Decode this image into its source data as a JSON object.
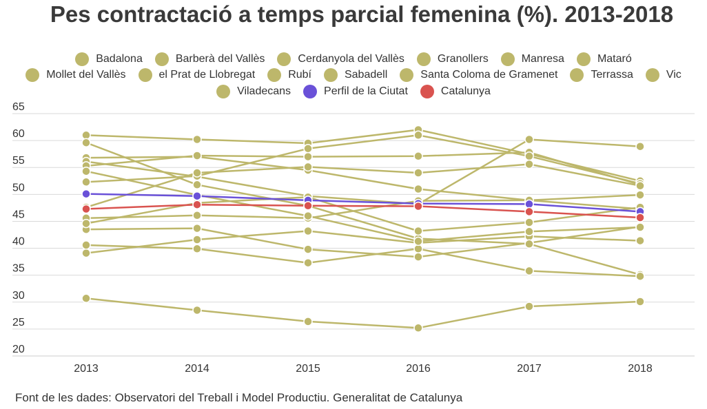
{
  "title": "Pes contractació a temps parcial femenina (%). 2013-2018",
  "source": "Font de les dades: Observatori del Treball i Model Productiu. Generalitat de Catalunya",
  "colors": {
    "municipality": "#bdb76b",
    "perfil": "#6a51d8",
    "catalunya": "#d9534f",
    "grid": "#d9d9d9"
  },
  "legend_rows": [
    [
      "Badalona",
      "Barberà del Vallès",
      "Cerdanyola del Vallès",
      "Granollers",
      "Manresa",
      "Mataró"
    ],
    [
      "Mollet del Vallès",
      "el Prat de Llobregat",
      "Rubí",
      "Sabadell",
      "Santa Coloma de Gramenet",
      "Terrassa",
      "Vic"
    ],
    [
      "Viladecans",
      "Perfil de la Ciutat",
      "Catalunya"
    ]
  ],
  "chart_data": {
    "type": "line",
    "title": "Pes contractació a temps parcial femenina (%). 2013-2018",
    "x": [
      "2013",
      "2014",
      "2015",
      "2016",
      "2017",
      "2018"
    ],
    "ylim": [
      20,
      65
    ],
    "yticks": [
      20,
      25,
      30,
      35,
      40,
      45,
      50,
      55,
      60,
      65
    ],
    "grid": true,
    "legend_position": "top",
    "series": [
      {
        "name": "Badalona",
        "values": [
          56.8,
          57.0,
          54.5,
          51.0,
          48.9,
          49.9
        ]
      },
      {
        "name": "Barberà del Vallès",
        "values": [
          30.7,
          28.5,
          26.4,
          25.2,
          29.2,
          30.1
        ]
      },
      {
        "name": "Cerdanyola del Vallès",
        "values": [
          61.0,
          60.2,
          59.5,
          62.0,
          57.5,
          52.5
        ]
      },
      {
        "name": "Granollers",
        "values": [
          45.6,
          46.1,
          45.6,
          48.8,
          48.9,
          47.3
        ]
      },
      {
        "name": "Manresa",
        "values": [
          56.1,
          53.3,
          49.7,
          48.2,
          60.2,
          58.9
        ]
      },
      {
        "name": "Mataró",
        "values": [
          55.3,
          57.2,
          57.0,
          57.1,
          57.8,
          51.8
        ]
      },
      {
        "name": "Mollet del Vallès",
        "values": [
          43.5,
          43.7,
          39.8,
          38.4,
          41.0,
          44.0
        ]
      },
      {
        "name": "el Prat de Llobregat",
        "values": [
          52.3,
          53.4,
          58.5,
          61.0,
          57.1,
          52.0
        ]
      },
      {
        "name": "Rubí",
        "values": [
          39.1,
          41.6,
          43.2,
          41.0,
          42.2,
          41.4
        ]
      },
      {
        "name": "Sabadell",
        "values": [
          59.6,
          51.8,
          47.9,
          41.8,
          40.8,
          35.1
        ]
      },
      {
        "name": "Santa Coloma de Gramenet",
        "values": [
          40.6,
          39.9,
          37.3,
          39.9,
          35.8,
          34.8
        ]
      },
      {
        "name": "Terrassa",
        "values": [
          44.6,
          48.4,
          49.5,
          43.2,
          44.8,
          47.6
        ]
      },
      {
        "name": "Vic",
        "values": [
          54.3,
          49.9,
          46.0,
          41.3,
          43.1,
          43.9
        ]
      },
      {
        "name": "Viladecans",
        "values": [
          47.6,
          54.0,
          55.1,
          54.0,
          55.6,
          51.6
        ]
      },
      {
        "name": "Perfil de la Ciutat",
        "values": [
          50.1,
          49.7,
          48.9,
          48.3,
          48.2,
          46.8
        ]
      },
      {
        "name": "Catalunya",
        "values": [
          47.3,
          48.1,
          47.9,
          47.8,
          46.8,
          45.7
        ]
      }
    ]
  }
}
